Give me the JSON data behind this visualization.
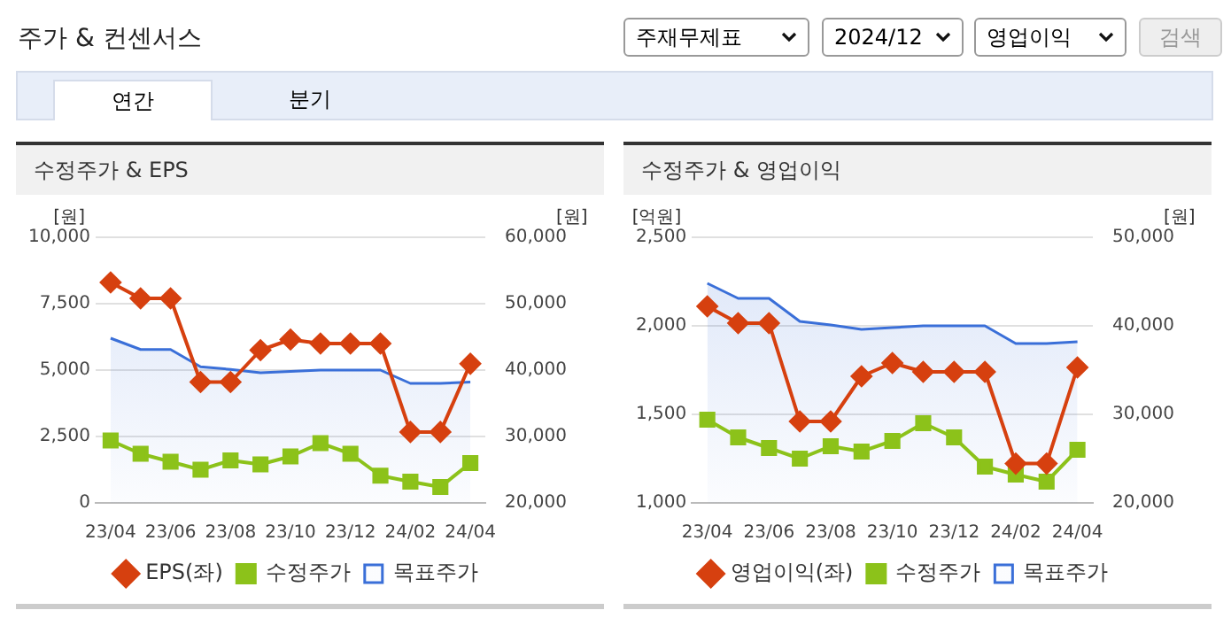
{
  "chart_data": [
    {
      "type": "other",
      "title": "주가 & 컨센서스",
      "annotations": [
        "주재무제표",
        "2024/12",
        "영업이익",
        "검색",
        "연간",
        "분기"
      ]
    },
    {
      "type": "line",
      "title": "수정주가 & EPS",
      "ylabel": "[원]",
      "y2label": "[원]",
      "categories": [
        "23/04",
        null,
        "23/06",
        null,
        "23/08",
        null,
        "23/10",
        null,
        "23/12",
        null,
        "24/02",
        null,
        "24/04"
      ],
      "series": [
        {
          "name": "목표주가",
          "type": "area",
          "axis": "y2",
          "color": "#3a6fd8",
          "marker": "none",
          "values": [
            44800,
            43100,
            43100,
            40500,
            40100,
            39600,
            39800,
            40000,
            40000,
            40000,
            38000,
            38000,
            38200
          ]
        },
        {
          "name": "EPS(좌)",
          "type": "line",
          "color": "#d6400f",
          "marker": "diamond",
          "values": [
            8300,
            7700,
            7700,
            4550,
            4550,
            5750,
            6150,
            6000,
            6000,
            6000,
            2670,
            2670,
            5240
          ]
        },
        {
          "name": "수정주가",
          "type": "line",
          "axis": "y2",
          "color": "#8cc21a",
          "marker": "square",
          "values": [
            29400,
            27400,
            26200,
            25000,
            26400,
            25800,
            27000,
            29000,
            27400,
            24100,
            23200,
            22400,
            26000
          ]
        }
      ],
      "ylim": [
        0,
        10000
      ],
      "yticks": [
        0,
        {
          "value": 2500,
          "label": "2,500"
        },
        {
          "value": 5000,
          "label": "5,000"
        },
        {
          "value": 7500,
          "label": "7,500"
        },
        {
          "value": 10000,
          "label": "10,000"
        }
      ],
      "y2lim": [
        20000,
        60000
      ],
      "y2ticks": [
        {
          "value": 20000,
          "label": "20,000"
        },
        {
          "value": 30000,
          "label": "30,000"
        },
        {
          "value": 40000,
          "label": "40,000"
        },
        {
          "value": 50000,
          "label": "50,000"
        },
        {
          "value": 60000,
          "label": "60,000"
        }
      ],
      "grid": "y",
      "legend": "bottom"
    },
    {
      "type": "line",
      "title": "수정주가 & 영업이익",
      "ylabel": "[억원]",
      "y2label": "[원]",
      "categories": [
        "23/04",
        null,
        "23/06",
        null,
        "23/08",
        null,
        "23/10",
        null,
        "23/12",
        null,
        "24/02",
        null,
        "24/04"
      ],
      "series": [
        {
          "name": "목표주가",
          "type": "area",
          "axis": "y2",
          "color": "#3a6fd8",
          "marker": "none",
          "values": [
            44800,
            43100,
            43100,
            40500,
            40100,
            39600,
            39800,
            40000,
            40000,
            40000,
            38000,
            38000,
            38200
          ]
        },
        {
          "name": "영업이익(좌)",
          "type": "line",
          "color": "#d6400f",
          "marker": "diamond",
          "values": [
            2110,
            2015,
            2015,
            1460,
            1460,
            1715,
            1790,
            1740,
            1740,
            1740,
            1222,
            1222,
            1765
          ]
        },
        {
          "name": "수정주가",
          "type": "line",
          "axis": "y2",
          "color": "#8cc21a",
          "marker": "square",
          "values": [
            29400,
            27400,
            26200,
            25000,
            26400,
            25800,
            27000,
            29000,
            27400,
            24100,
            23200,
            22400,
            26000
          ]
        }
      ],
      "ylim": [
        1000,
        2500
      ],
      "yticks": [
        {
          "value": 1000,
          "label": "1,000"
        },
        {
          "value": 1500,
          "label": "1,500"
        },
        {
          "value": 2000,
          "label": "2,000"
        },
        {
          "value": 2500,
          "label": "2,500"
        }
      ],
      "y2lim": [
        20000,
        50000
      ],
      "y2ticks": [
        {
          "value": 20000,
          "label": "20,000"
        },
        {
          "value": 30000,
          "label": "30,000"
        },
        {
          "value": 40000,
          "label": "40,000"
        },
        {
          "value": 50000,
          "label": "50,000"
        }
      ],
      "grid": "y",
      "legend": "bottom"
    }
  ]
}
